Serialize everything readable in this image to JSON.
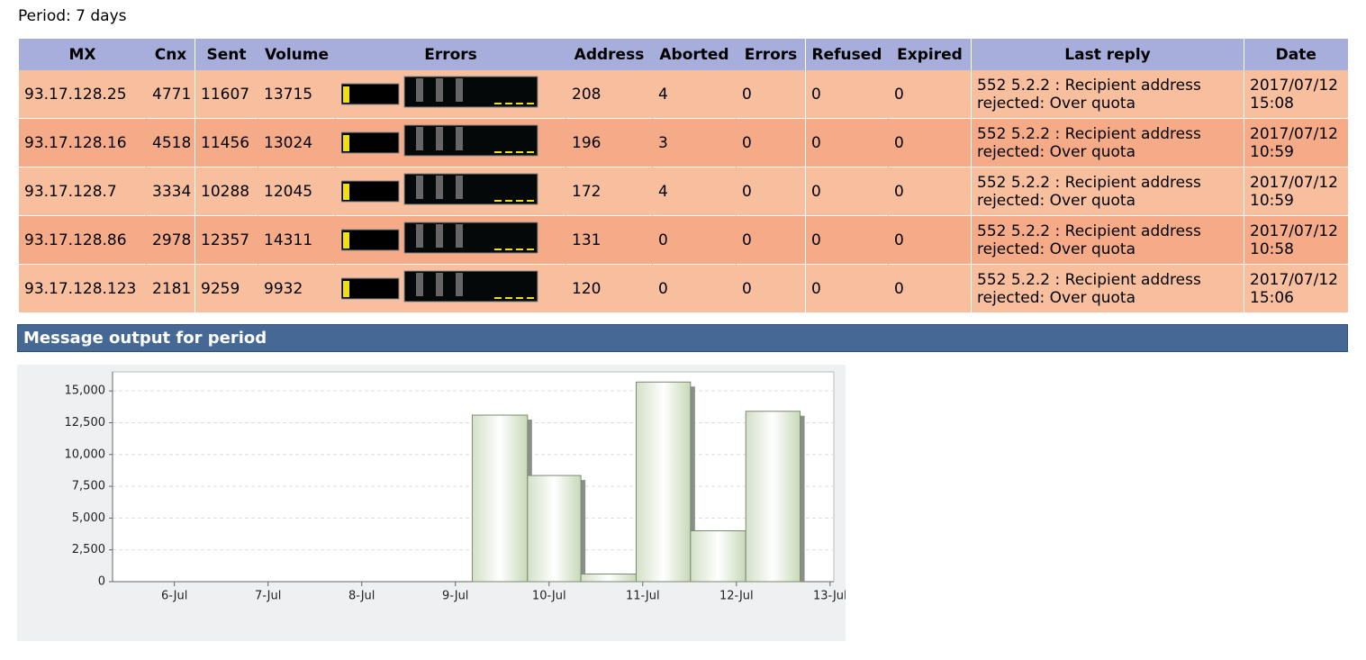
{
  "period": "Period: 7 days",
  "table": {
    "headers": [
      "MX",
      "Cnx",
      "Sent",
      "Volume",
      "Errors",
      "Address",
      "Aborted",
      "Errors",
      "Refused",
      "Expired",
      "Last reply",
      "Date"
    ],
    "rows": [
      [
        "93.17.128.25",
        "4771",
        "11607",
        "13715",
        "208",
        "4",
        "0",
        "0",
        "0",
        "552 5.2.2 : Recipient address rejected: Over quota",
        "2017/07/12 15:08"
      ],
      [
        "93.17.128.16",
        "4518",
        "11456",
        "13024",
        "196",
        "3",
        "0",
        "0",
        "0",
        "552 5.2.2 : Recipient address rejected: Over quota",
        "2017/07/12 10:59"
      ],
      [
        "93.17.128.7",
        "3334",
        "10288",
        "12045",
        "172",
        "4",
        "0",
        "0",
        "0",
        "552 5.2.2 : Recipient address rejected: Over quota",
        "2017/07/12 10:59"
      ],
      [
        "93.17.128.86",
        "2978",
        "12357",
        "14311",
        "131",
        "0",
        "0",
        "0",
        "0",
        "552 5.2.2 : Recipient address rejected: Over quota",
        "2017/07/12 10:58"
      ],
      [
        "93.17.128.123",
        "2181",
        "9259",
        "9932",
        "120",
        "0",
        "0",
        "0",
        "0",
        "552 5.2.2 : Recipient address rejected: Over quota",
        "2017/07/12 15:06"
      ]
    ]
  },
  "section_title": "Message output for period",
  "chart_data": {
    "type": "histogram",
    "bins": [
      9.18,
      9.77,
      10.34,
      10.93,
      11.51,
      12.1,
      12.68
    ],
    "values": [
      13100,
      8350,
      600,
      15700,
      4000,
      13400
    ],
    "color": "#e4ecdc",
    "xlim": [
      5.34,
      13.04
    ],
    "xticks": [
      {
        "value": 6,
        "label": "6-Jul"
      },
      {
        "value": 7,
        "label": "7-Jul"
      },
      {
        "value": 8,
        "label": "8-Jul"
      },
      {
        "value": 9,
        "label": "9-Jul"
      },
      {
        "value": 10,
        "label": "10-Jul"
      },
      {
        "value": 11,
        "label": "11-Jul"
      },
      {
        "value": 12,
        "label": "12-Jul"
      },
      {
        "value": 13,
        "label": "13-Jul"
      }
    ],
    "ylim": [
      0,
      16500
    ],
    "yticks": [
      0,
      {
        "value": 2500,
        "label": "2,500"
      },
      {
        "value": 5000,
        "label": "5,000"
      },
      {
        "value": 7500,
        "label": "7,500"
      },
      {
        "value": 10000,
        "label": "10,000"
      },
      {
        "value": 12500,
        "label": "12,500"
      },
      {
        "value": 15000,
        "label": "15,000"
      }
    ],
    "grid": true
  }
}
